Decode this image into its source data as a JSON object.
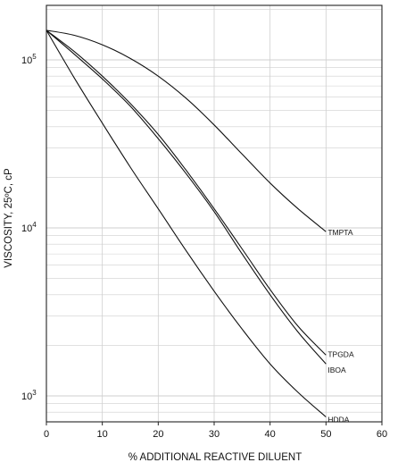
{
  "chart_data": {
    "type": "line",
    "xlabel": "% ADDITIONAL REACTIVE DILUENT",
    "ylabel": "VISCOSITY, 25ºC, cP",
    "x_ticks": [
      "0",
      "10",
      "20",
      "30",
      "40",
      "50",
      "60"
    ],
    "y_ticks": [
      {
        "label": "10",
        "exp": "5",
        "value": 100000
      },
      {
        "label": "10",
        "exp": "4",
        "value": 10000
      },
      {
        "label": "10",
        "exp": "3",
        "value": 1000
      }
    ],
    "xlim": [
      0,
      60
    ],
    "ylim": [
      700,
      200000
    ],
    "yscale": "log",
    "grid": true,
    "series": [
      {
        "name": "TMPTA",
        "x": [
          0,
          5,
          10,
          15,
          20,
          25,
          30,
          35,
          40,
          45,
          50
        ],
        "y": [
          150000,
          140000,
          123000,
          102000,
          80000,
          59000,
          41000,
          27500,
          18500,
          13000,
          9500
        ]
      },
      {
        "name": "TPGDA",
        "x": [
          0,
          5,
          10,
          15,
          20,
          25,
          30,
          35,
          40,
          45,
          50
        ],
        "y": [
          150000,
          112000,
          80000,
          55000,
          36000,
          22000,
          13000,
          7500,
          4300,
          2600,
          1750
        ]
      },
      {
        "name": "IBOA",
        "x": [
          0,
          5,
          10,
          15,
          20,
          25,
          30,
          35,
          40,
          45,
          50
        ],
        "y": [
          150000,
          108000,
          77000,
          53000,
          34000,
          21000,
          12500,
          7000,
          4000,
          2400,
          1550
        ]
      },
      {
        "name": "HDDA",
        "x": [
          0,
          5,
          10,
          15,
          20,
          25,
          30,
          35,
          40,
          45,
          50
        ],
        "y": [
          150000,
          78000,
          42000,
          23000,
          13000,
          7300,
          4200,
          2500,
          1550,
          1050,
          750
        ]
      }
    ],
    "colors": {
      "line": "#111111",
      "grid": "#cfcfcf",
      "axis": "#222222"
    }
  }
}
